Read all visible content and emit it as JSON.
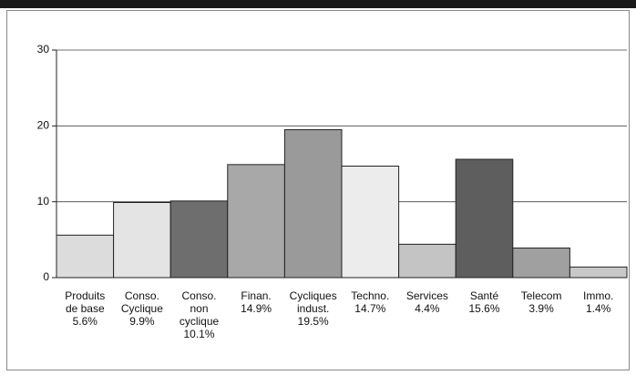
{
  "chart_data": {
    "type": "bar",
    "categories": [
      "Produits de base",
      "Conso. Cyclique",
      "Conso. non cyclique",
      "Finan.",
      "Cycliques indust.",
      "Techno.",
      "Services",
      "Santé",
      "Telecom",
      "Immo."
    ],
    "values": [
      5.6,
      9.9,
      10.1,
      14.9,
      19.5,
      14.7,
      4.4,
      15.6,
      3.9,
      1.4
    ],
    "value_labels": [
      "5.6%",
      "9.9%",
      "10.1%",
      "14.9%",
      "19.5%",
      "14.7%",
      "4.4%",
      "15.6%",
      "3.9%",
      "1.4%"
    ],
    "colors": [
      "#dcdcdc",
      "#e4e4e4",
      "#6e6e6e",
      "#a8a8a8",
      "#9a9a9a",
      "#ececec",
      "#c4c4c4",
      "#5e5e5e",
      "#a0a0a0",
      "#c8c8c8"
    ],
    "ylim": [
      0,
      30
    ],
    "yticks": [
      0,
      10,
      20,
      30
    ],
    "grid": true
  }
}
